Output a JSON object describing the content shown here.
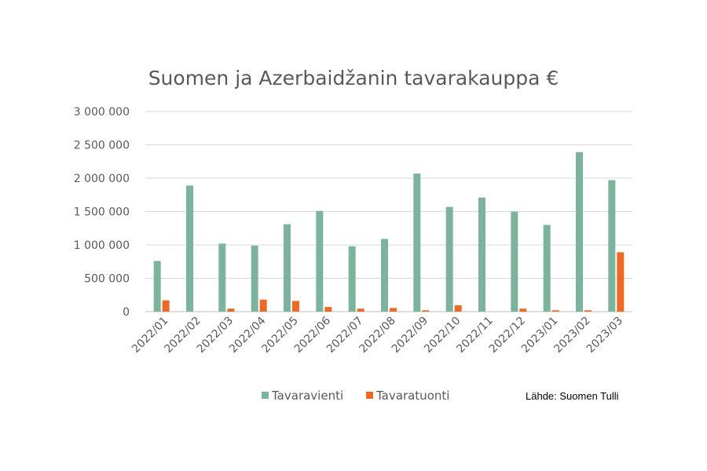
{
  "chart_data": {
    "type": "bar",
    "title": "Suomen ja Azerbaidžanin tavarakauppa €",
    "xlabel": "",
    "ylabel": "",
    "ylim": [
      0,
      3000000
    ],
    "yticks": [
      0,
      500000,
      1000000,
      1500000,
      2000000,
      2500000,
      3000000
    ],
    "ytick_labels": [
      "0",
      "500 000",
      "1 000 000",
      "1 500 000",
      "2 000 000",
      "2 500 000",
      "3 000 000"
    ],
    "categories": [
      "2022/01",
      "2022/02",
      "2022/03",
      "2022/04",
      "2022/05",
      "2022/06",
      "2022/07",
      "2022/08",
      "2022/09",
      "2022/10",
      "2022/11",
      "2022/12",
      "2023/01",
      "2023/02",
      "2023/03"
    ],
    "series": [
      {
        "name": "Tavaravienti",
        "color": "#7bb39c",
        "values": [
          760000,
          1890000,
          1020000,
          990000,
          1310000,
          1510000,
          980000,
          1090000,
          2070000,
          1570000,
          1710000,
          1500000,
          1300000,
          2390000,
          1970000
        ]
      },
      {
        "name": "Tavaratuonti",
        "color": "#ee6a24",
        "values": [
          170000,
          0,
          45000,
          180000,
          160000,
          70000,
          45000,
          55000,
          20000,
          95000,
          0,
          45000,
          20000,
          20000,
          890000
        ]
      }
    ],
    "grid": true,
    "legend": "bottom",
    "source": "Lähde: Suomen Tulli"
  }
}
